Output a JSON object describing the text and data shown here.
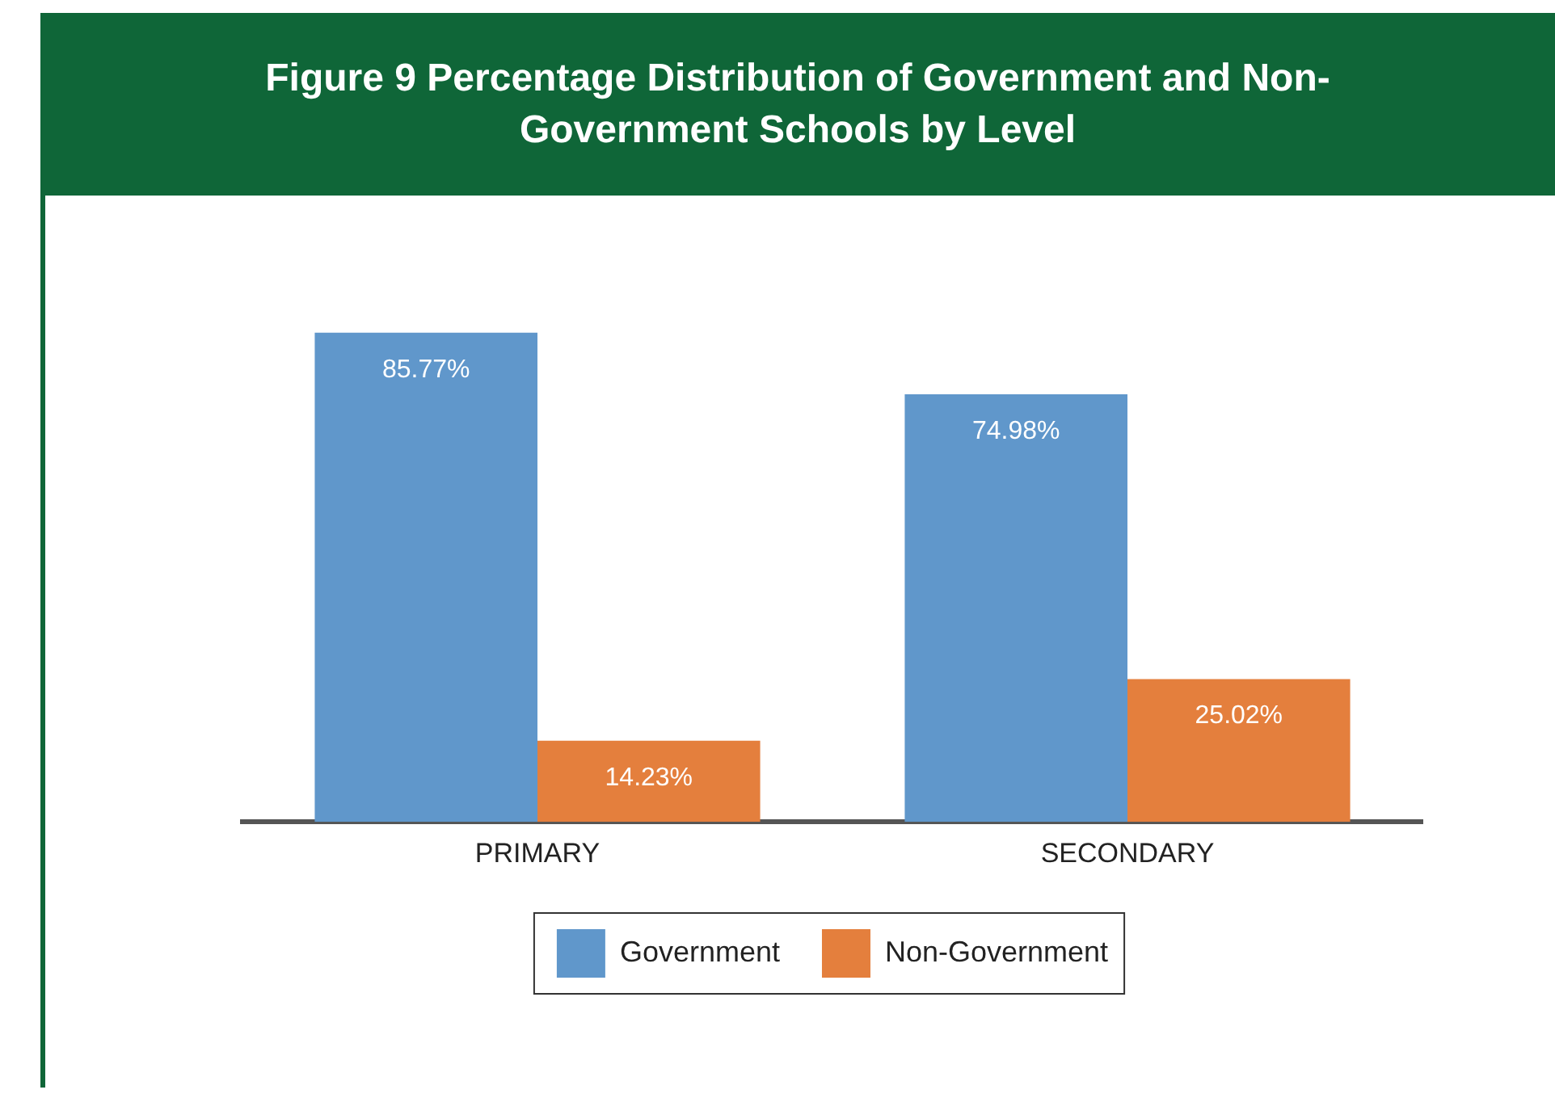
{
  "chart_data": {
    "type": "bar",
    "title": "Figure 9 Percentage Distribution of Government and Non-Government Schools by Level",
    "categories": [
      "PRIMARY",
      "SECONDARY"
    ],
    "series": [
      {
        "name": "Government",
        "color": "#6097cb",
        "values": [
          85.77,
          74.98
        ],
        "value_labels": [
          "85.77%",
          "74.98%"
        ]
      },
      {
        "name": "Non-Government",
        "color": "#e47f3d",
        "values": [
          14.23,
          25.02
        ],
        "value_labels": [
          "14.23%",
          "25.02%"
        ]
      }
    ],
    "tick_labels": "x",
    "grid": false,
    "legend": "bottom"
  }
}
